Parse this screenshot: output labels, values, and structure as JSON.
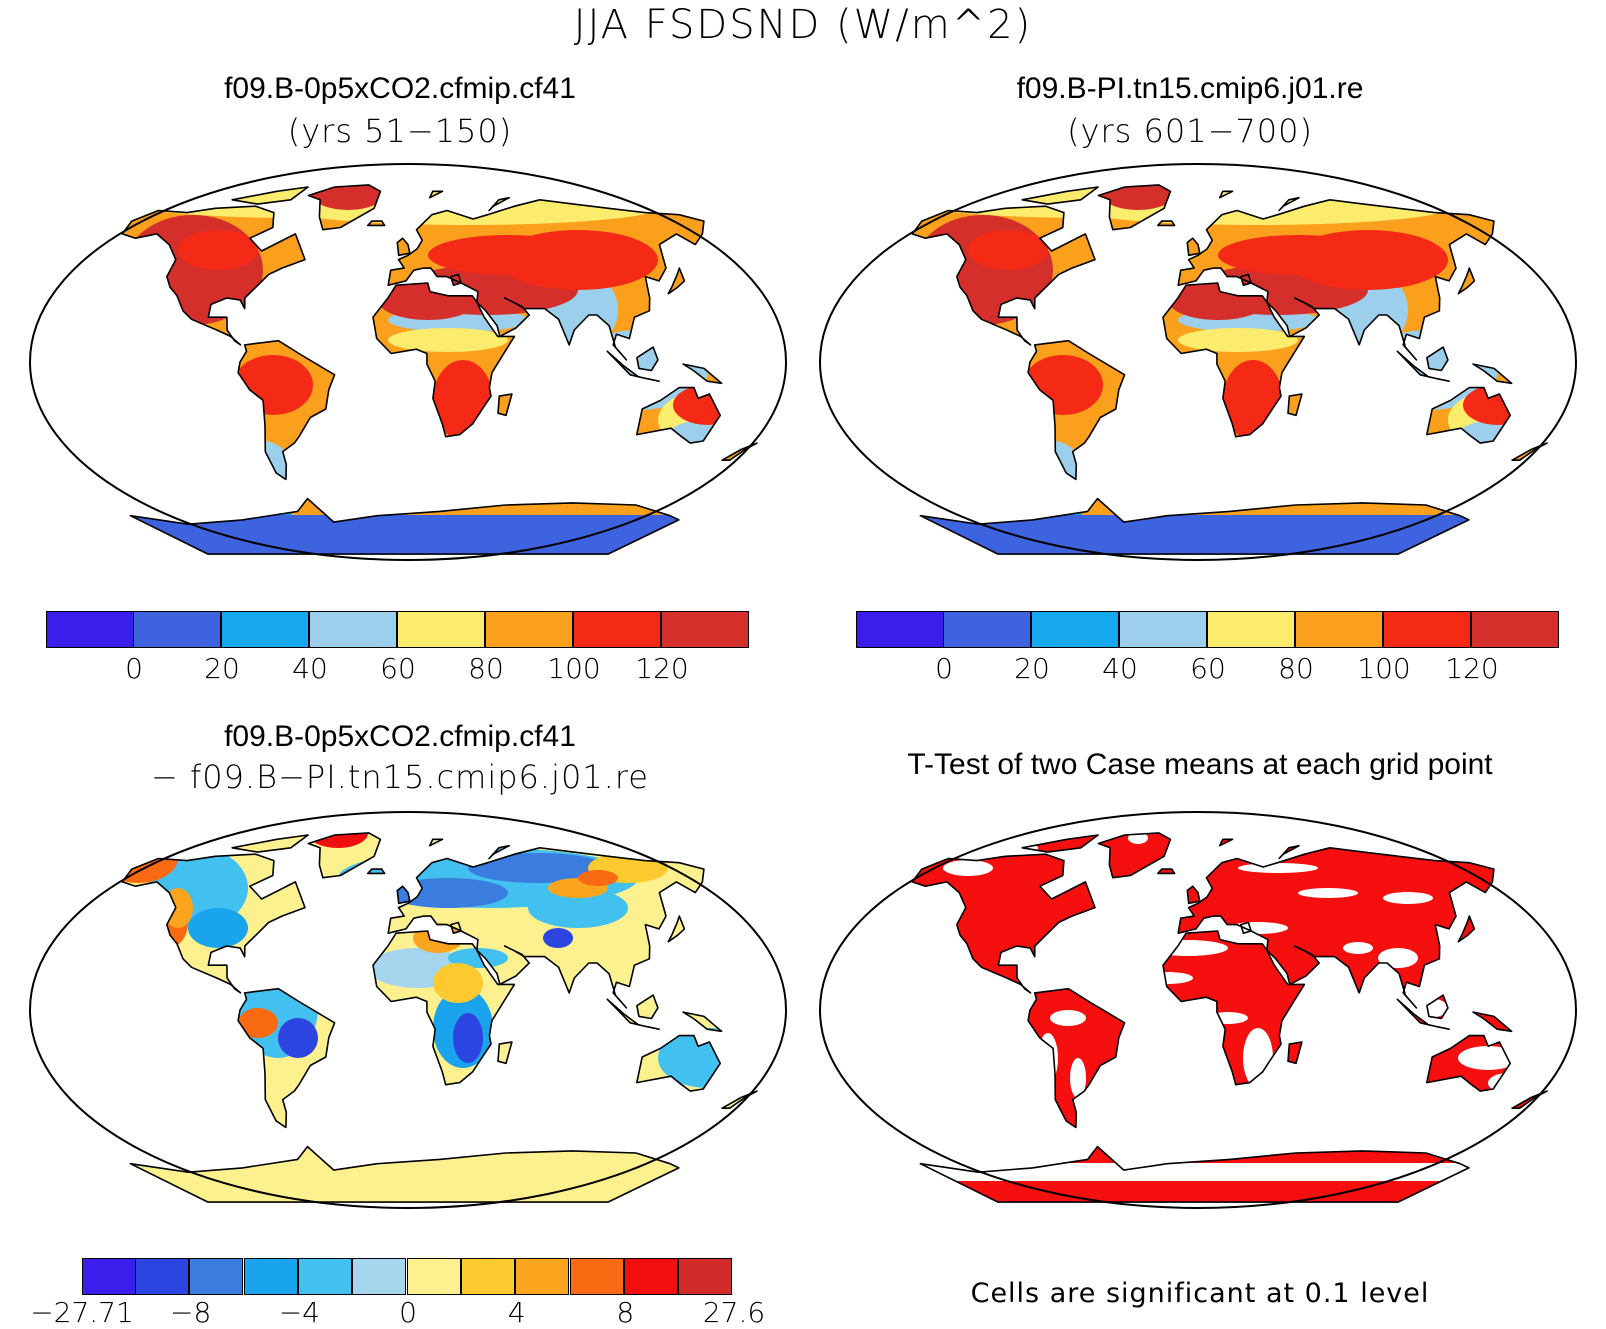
{
  "title": "JJA FSDSND (W/m^2)",
  "panels": {
    "top_left": {
      "title": "f09.B-0p5xCO2.cfmip.cf41",
      "subtitle": "(yrs 51−150)"
    },
    "top_right": {
      "title": "f09.B-PI.tn15.cmip6.j01.re",
      "subtitle": "(yrs 601−700)"
    },
    "bottom_left": {
      "title": "f09.B-0p5xCO2.cfmip.cf41",
      "subtitle": "− f09.B−PI.tn15.cmip6.j01.re"
    },
    "bottom_right": {
      "title": "T-Test of two Case means at each grid point",
      "note": "Cells are significant at 0.1 level"
    }
  },
  "colorbar_main": {
    "colors": [
      "#3a1eec",
      "#3d63de",
      "#16a8ef",
      "#9ccfeb",
      "#fcec6e",
      "#fba01d",
      "#f42a16",
      "#d42f2a"
    ],
    "labels": [
      "0",
      "20",
      "40",
      "60",
      "80",
      "100",
      "120"
    ]
  },
  "colorbar_diff": {
    "colors": [
      "#3a1eec",
      "#2d45e0",
      "#3b7cdf",
      "#1aa4ee",
      "#42c0ef",
      "#a5d6ee",
      "#fdf18f",
      "#fcca2e",
      "#fba51e",
      "#f96a12",
      "#f20e0e",
      "#d22b2b"
    ],
    "labels": [
      "−27.71",
      "−8",
      "−4",
      "0",
      "4",
      "8",
      "27.6"
    ]
  },
  "ttest_color": "#f50f0f"
}
